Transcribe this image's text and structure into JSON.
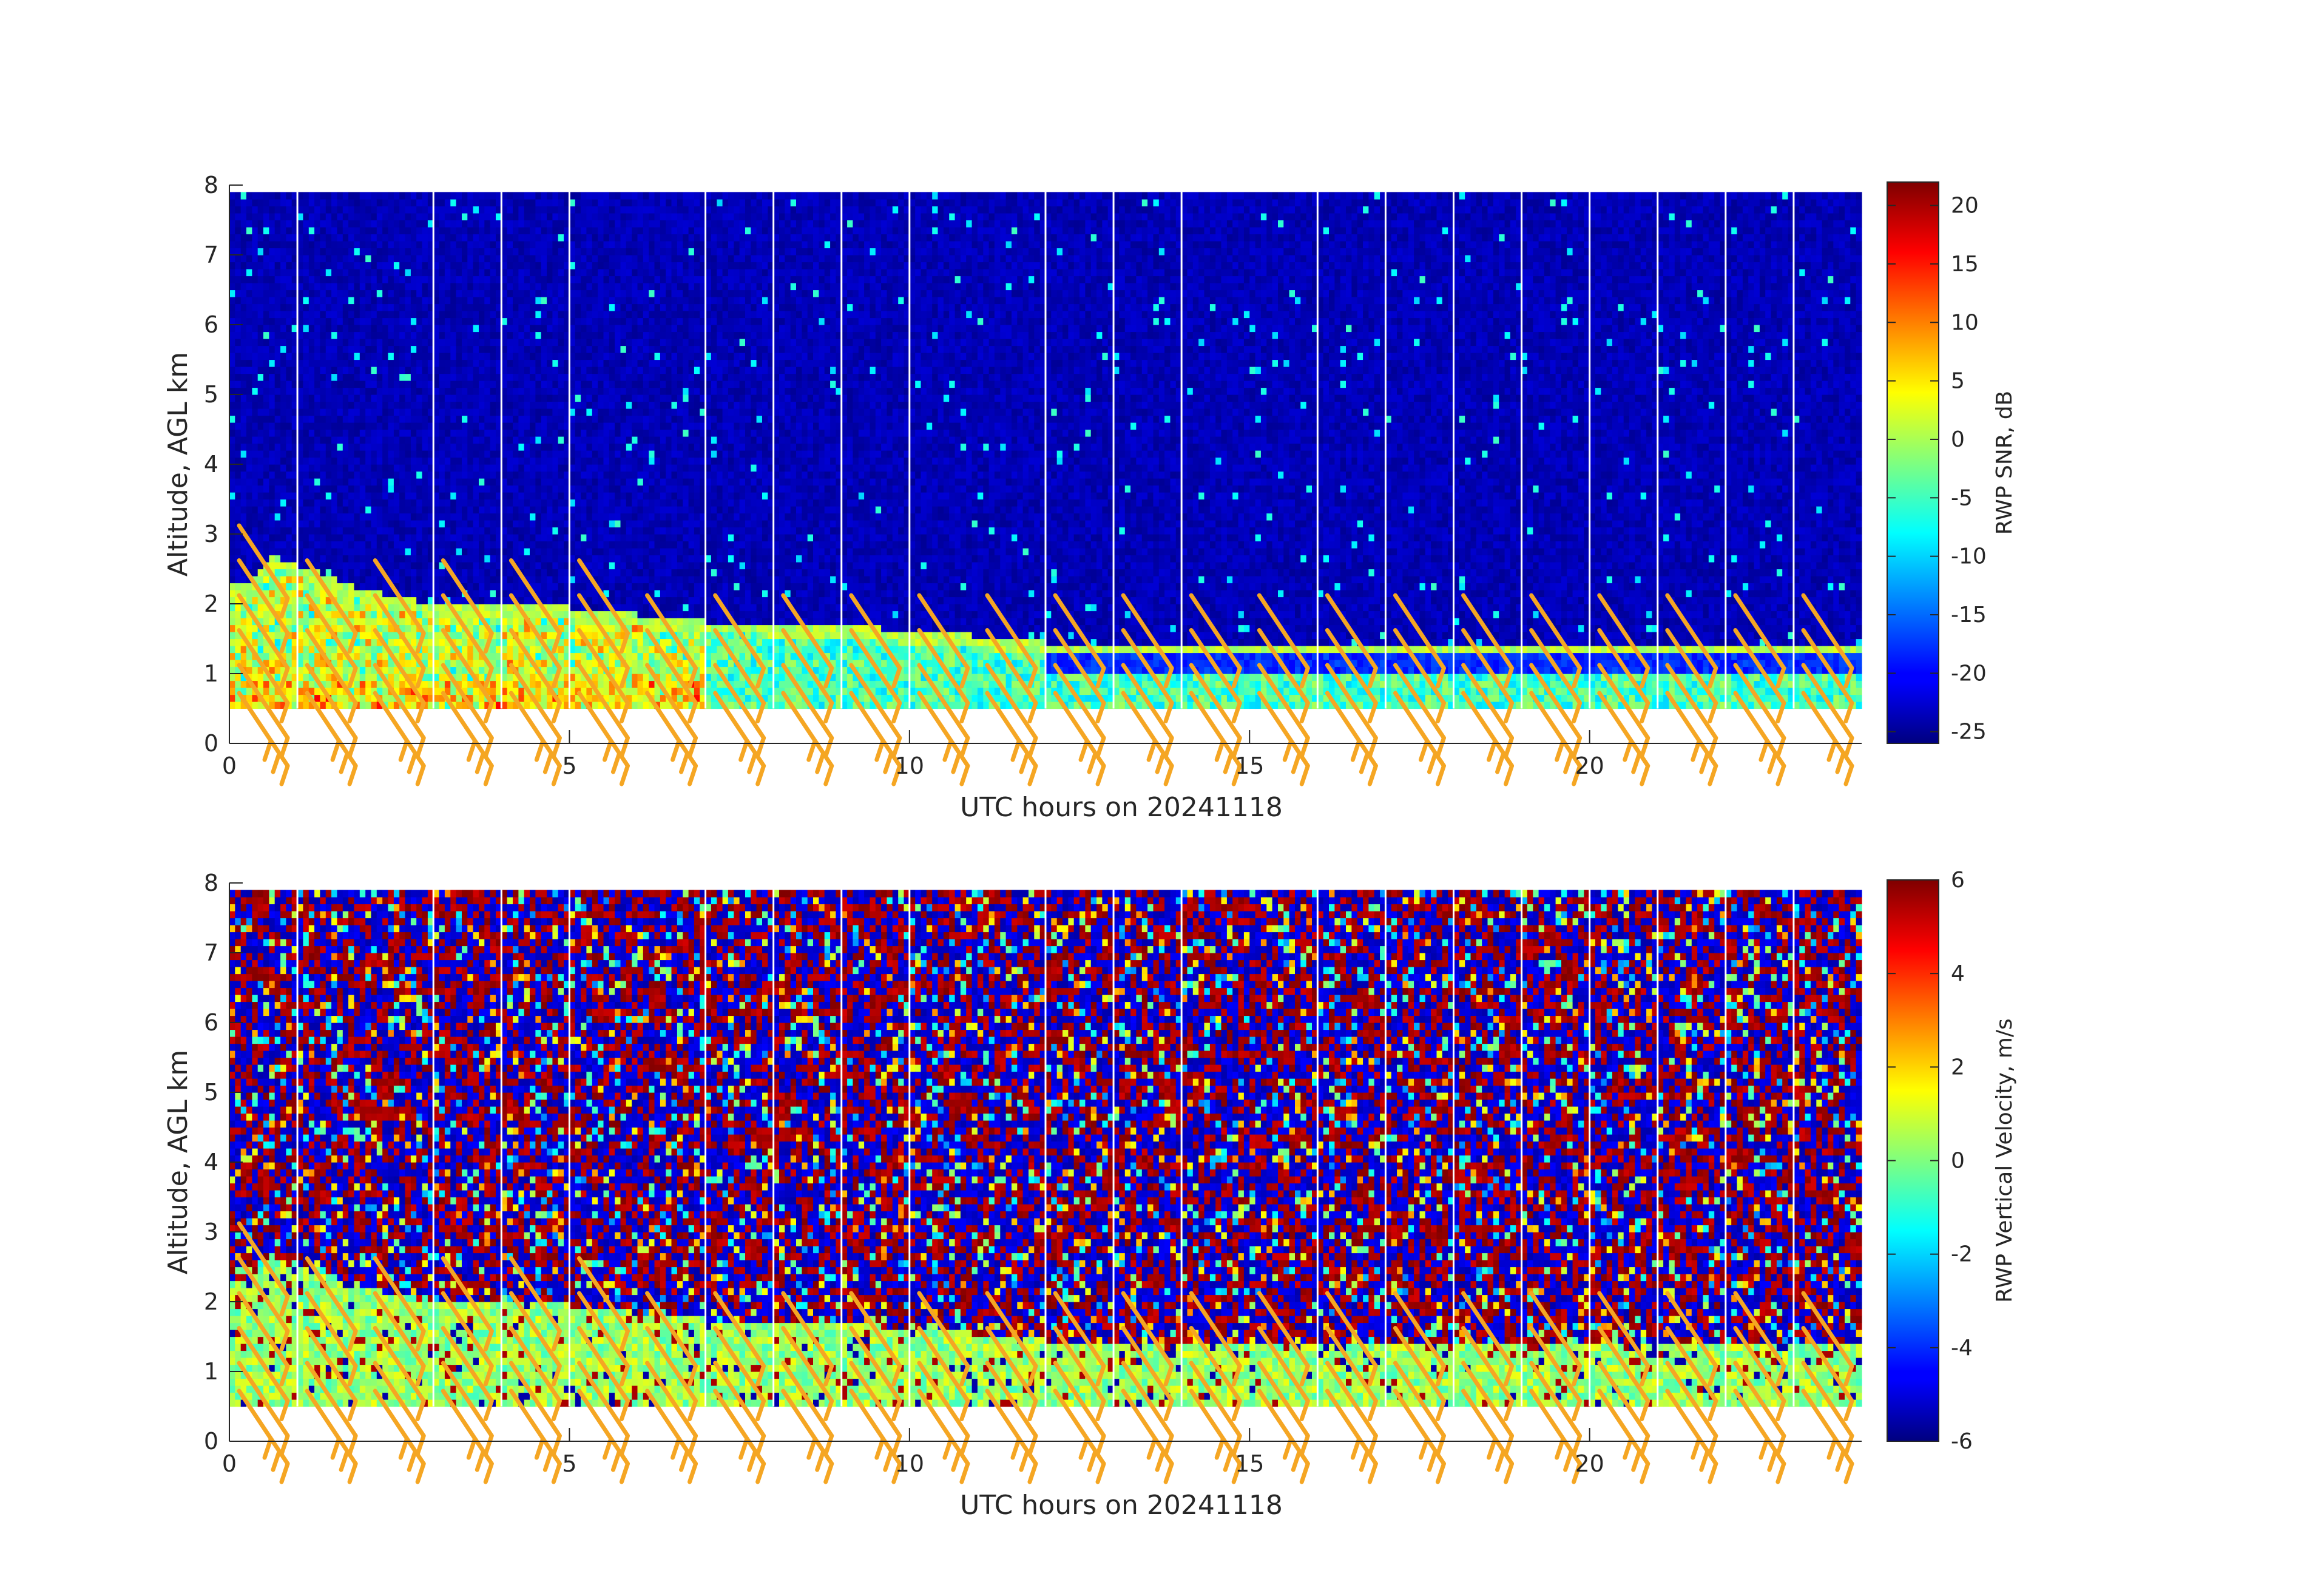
{
  "chart_data": [
    {
      "type": "heatmap",
      "xlabel": "UTC hours on 20241118",
      "ylabel": "Altitude, AGL km",
      "xlim": [
        0,
        24
      ],
      "ylim": [
        0,
        8
      ],
      "x_ticks": [
        0,
        5,
        10,
        15,
        20
      ],
      "y_ticks": [
        0,
        1,
        2,
        3,
        4,
        5,
        6,
        7,
        8
      ],
      "data_altitude_range_km": [
        0.5,
        7.9
      ],
      "colorbar": {
        "label": "RWP SNR, dB",
        "range": [
          -26,
          22
        ],
        "ticks": [
          -25,
          -20,
          -15,
          -10,
          -5,
          0,
          5,
          10,
          15,
          20
        ]
      },
      "description_values": {
        "boundary_layer_top_km": [
          {
            "x": 0.3,
            "y": 2.3
          },
          {
            "x": 0.6,
            "y": 2.7
          },
          {
            "x": 2.0,
            "y": 2.2
          },
          {
            "x": 3.0,
            "y": 2.0
          },
          {
            "x": 5.0,
            "y": 1.95
          },
          {
            "x": 6.0,
            "y": 1.85
          },
          {
            "x": 7.0,
            "y": 1.75
          },
          {
            "x": 9.0,
            "y": 1.7
          },
          {
            "x": 11.5,
            "y": 1.5
          },
          {
            "x": 12.0,
            "y": 1.45
          },
          {
            "x": 24.0,
            "y": 1.45
          }
        ]
      }
    },
    {
      "type": "heatmap",
      "xlabel": "UTC hours on 20241118",
      "ylabel": "Altitude, AGL km",
      "xlim": [
        0,
        24
      ],
      "ylim": [
        0,
        8
      ],
      "x_ticks": [
        0,
        5,
        10,
        15,
        20
      ],
      "y_ticks": [
        0,
        1,
        2,
        3,
        4,
        5,
        6,
        7,
        8
      ],
      "data_altitude_range_km": [
        0.5,
        7.9
      ],
      "colorbar": {
        "label": "RWP Vertical Velocity, m/s",
        "range": [
          -6,
          6
        ],
        "ticks": [
          -6,
          -4,
          -2,
          0,
          2,
          4,
          6
        ]
      }
    }
  ],
  "gap_hours": [
    1,
    3,
    4,
    5,
    7,
    8,
    9,
    10,
    12,
    13,
    14,
    16,
    17,
    18,
    19,
    20,
    21,
    22,
    23
  ],
  "wind_barb_times": [
    0.5,
    1.5,
    2.5,
    3.5,
    4.5,
    5.5,
    6.5,
    7.5,
    8.5,
    9.5,
    10.5,
    11.5,
    12.5,
    13.5,
    14.5,
    15.5,
    16.5,
    17.5,
    18.5,
    19.5,
    20.5,
    21.5,
    22.5,
    23.5
  ],
  "wind_barb_color": "#f5a623"
}
